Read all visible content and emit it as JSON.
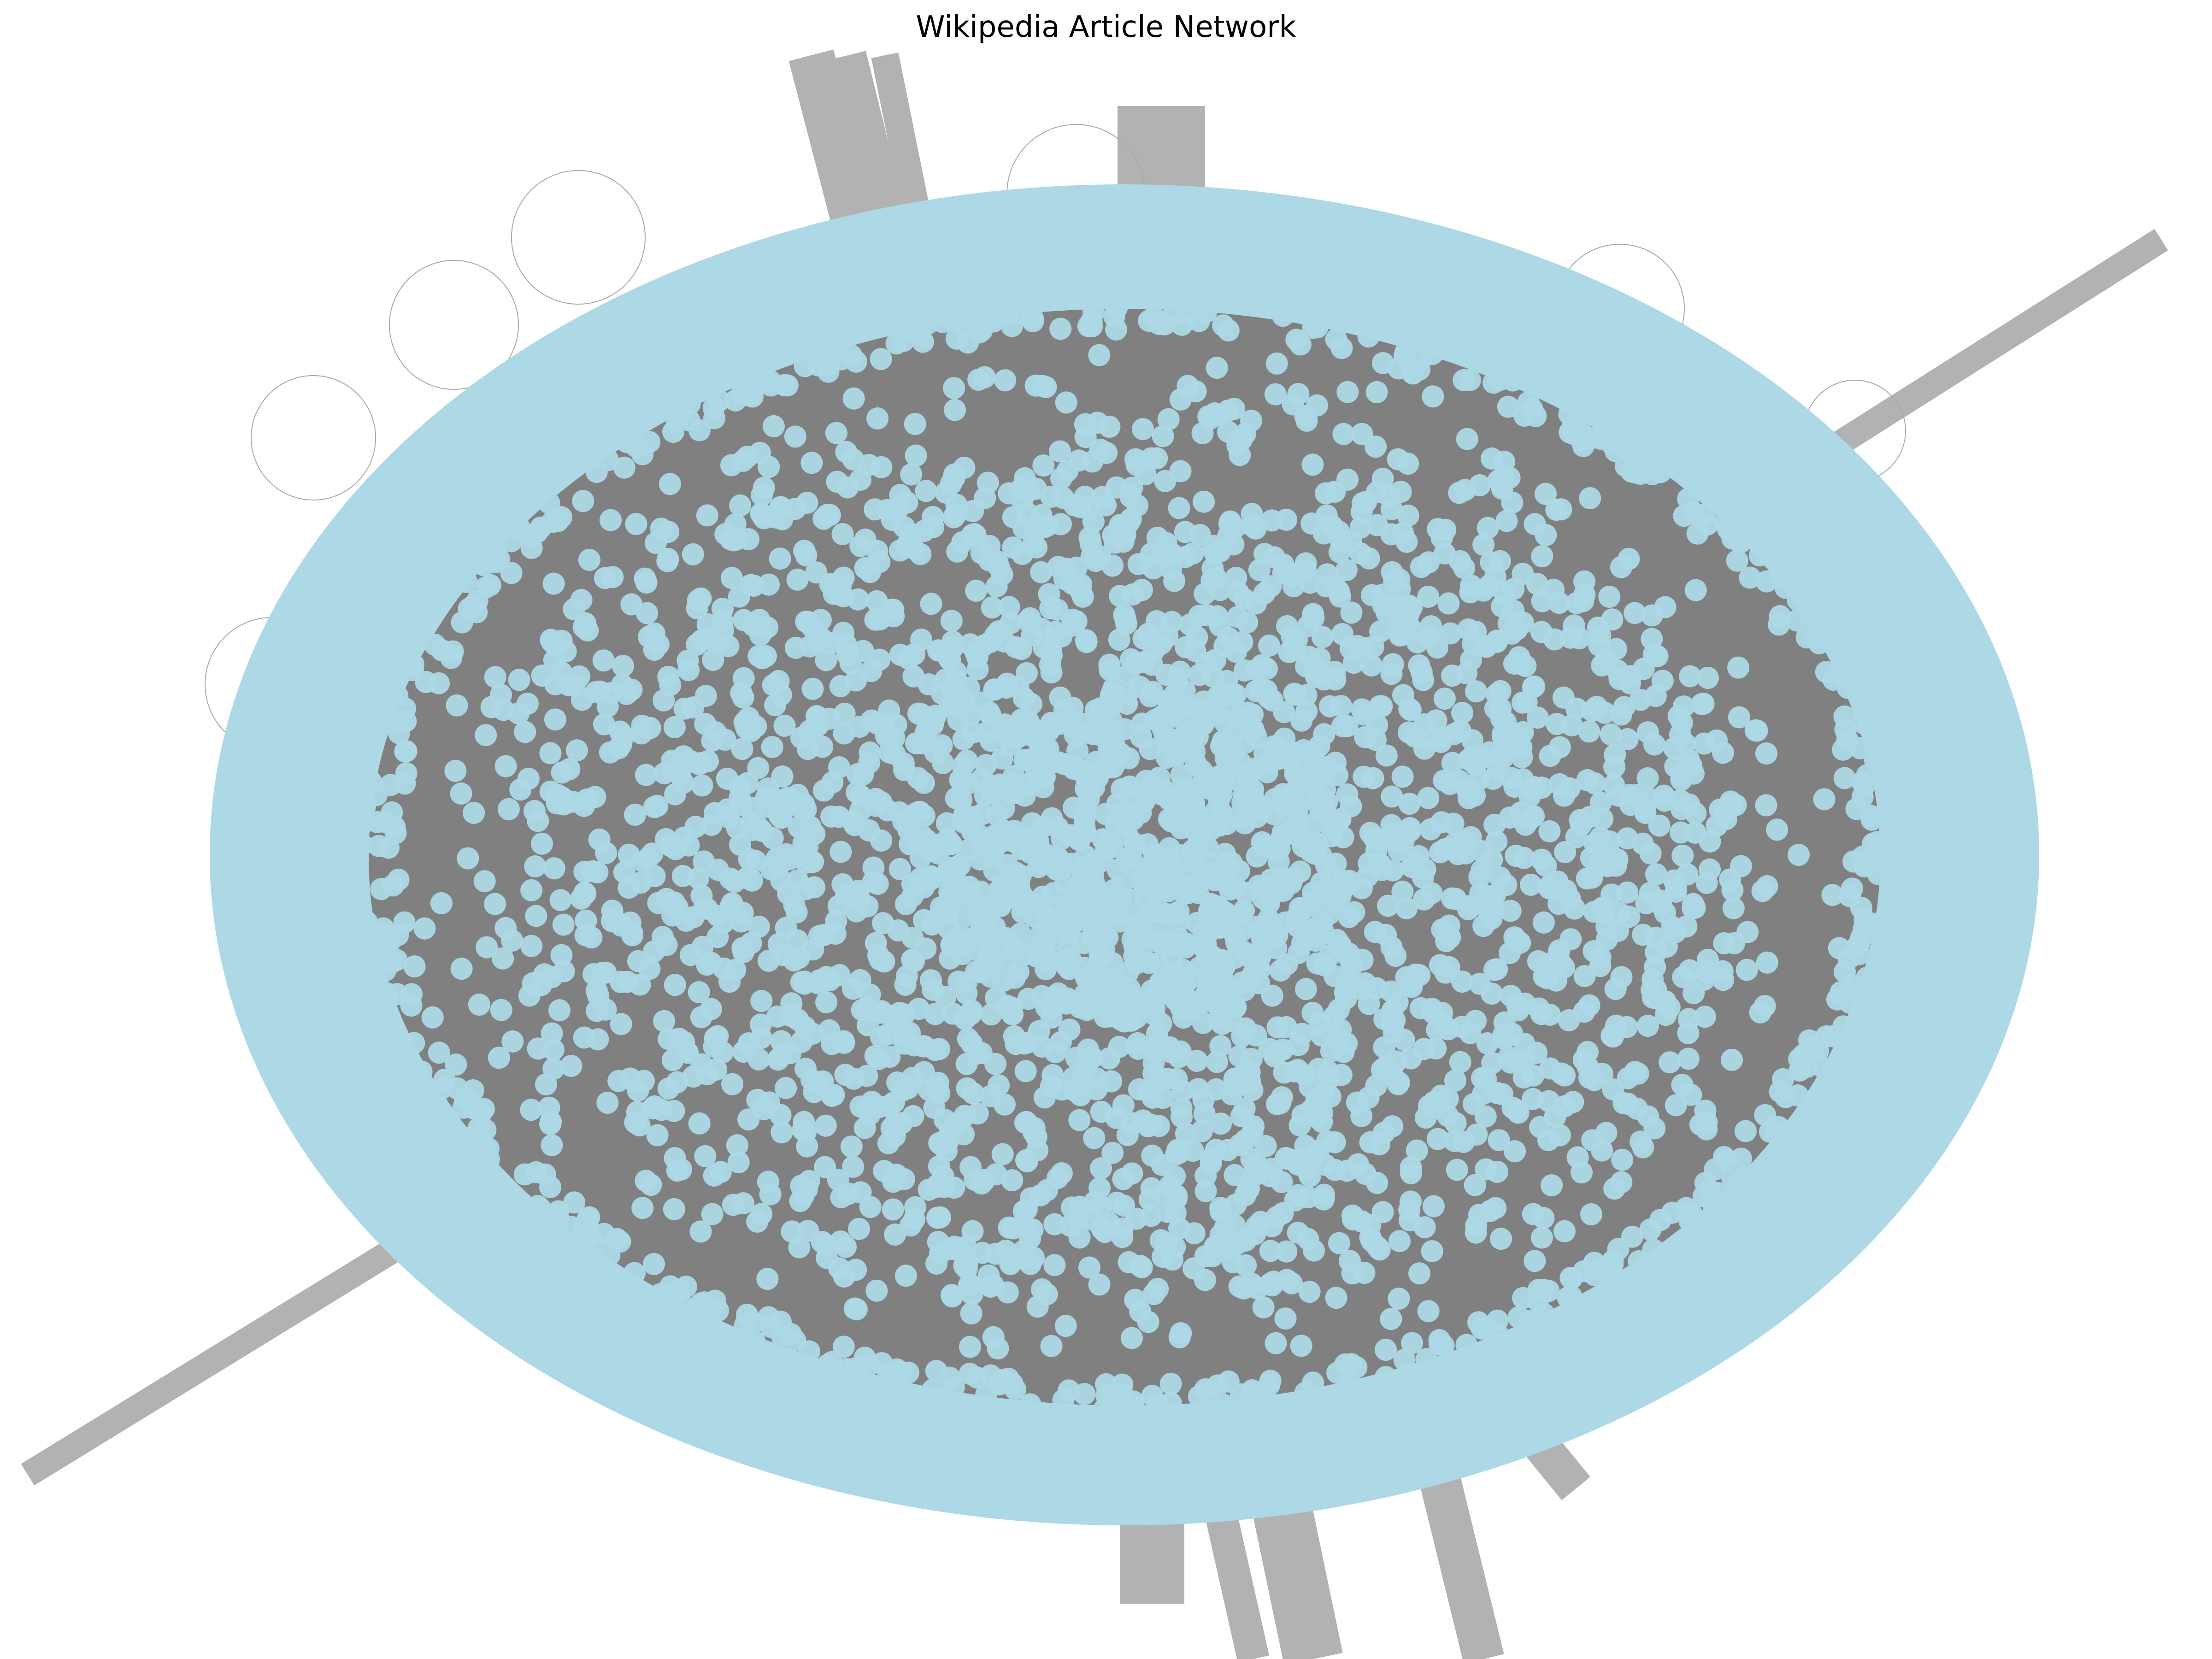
{
  "figure": {
    "title": "Wikipedia Article Network"
  },
  "network": {
    "node_color": "#add8e6",
    "edge_color": "#808080",
    "thick_edge_color": "#b2b2b2",
    "self_loop_color": "#a9a9a9"
  }
}
